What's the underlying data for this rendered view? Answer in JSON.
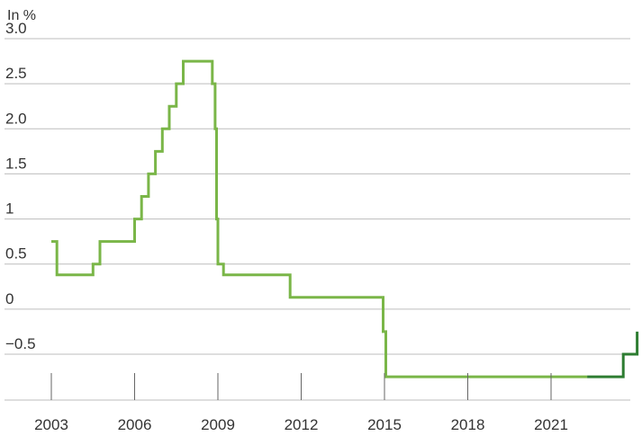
{
  "chart_data": {
    "type": "line",
    "title": "",
    "xlabel": "",
    "ylabel": "In %",
    "grid": true,
    "legend": "none",
    "xlim": [
      2002.5,
      2024.3
    ],
    "ylim": [
      -0.75,
      3.0
    ],
    "x_ticks": [
      {
        "label": "2003",
        "value": 2003
      },
      {
        "label": "2006",
        "value": 2006
      },
      {
        "label": "2009",
        "value": 2009
      },
      {
        "label": "2012",
        "value": 2012
      },
      {
        "label": "2015",
        "value": 2015
      },
      {
        "label": "2018",
        "value": 2018
      },
      {
        "label": "2021",
        "value": 2021
      }
    ],
    "y_ticks": [
      {
        "label": "3.0",
        "value": 3.0
      },
      {
        "label": "2.5",
        "value": 2.5
      },
      {
        "label": "2.0",
        "value": 2.0
      },
      {
        "label": "1.5",
        "value": 1.5
      },
      {
        "label": "1",
        "value": 1.0
      },
      {
        "label": "0.5",
        "value": 0.5
      },
      {
        "label": "0",
        "value": 0.0
      },
      {
        "label": "−0.5",
        "value": -0.5
      }
    ],
    "series": [
      {
        "color": "#7ab648",
        "step": true,
        "x": [
          2003.0,
          2003.2,
          2004.5,
          2004.75,
          2006.0,
          2006.25,
          2006.5,
          2006.75,
          2007.0,
          2007.25,
          2007.5,
          2007.75,
          2008.8,
          2008.9,
          2008.95,
          2009.0,
          2009.05,
          2009.2,
          2011.6,
          2014.95,
          2015.05,
          2022.3
        ],
        "y": [
          0.75,
          0.38,
          0.5,
          0.75,
          1.0,
          1.25,
          1.5,
          1.75,
          2.0,
          2.25,
          2.5,
          2.75,
          2.5,
          2.0,
          1.0,
          0.5,
          0.5,
          0.38,
          0.13,
          -0.25,
          -0.75,
          -0.75
        ]
      },
      {
        "color": "#2e7d32",
        "step": true,
        "x": [
          2022.3,
          2022.9,
          2023.6,
          2024.1
        ],
        "y": [
          -0.75,
          -0.75,
          -0.5,
          -0.25
        ]
      }
    ]
  }
}
